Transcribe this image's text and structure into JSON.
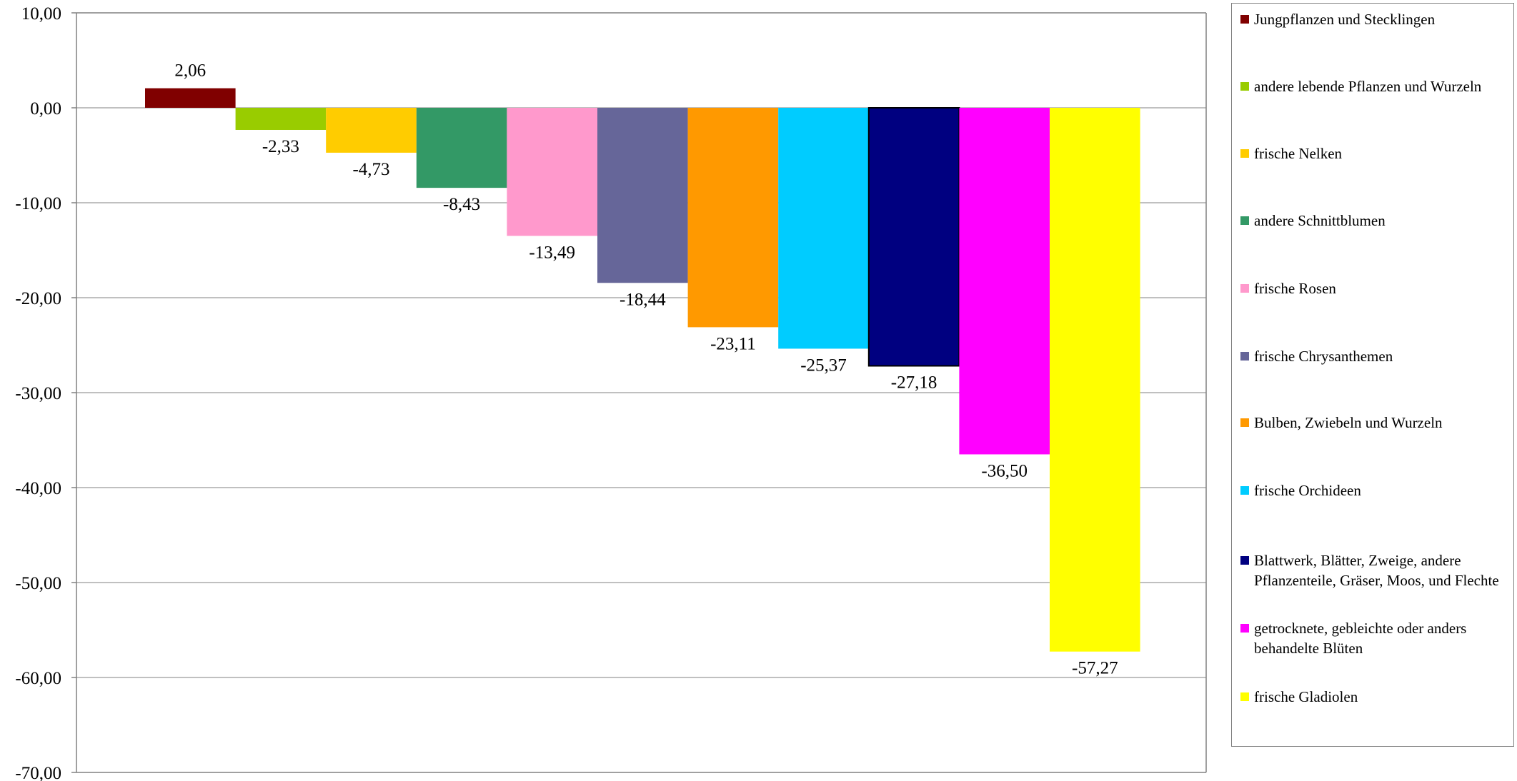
{
  "chart_data": {
    "type": "bar",
    "title": "",
    "xlabel": "",
    "ylabel": "",
    "ylim": [
      -70,
      10
    ],
    "yticks": [
      10,
      0,
      -10,
      -20,
      -30,
      -40,
      -50,
      -60,
      -70
    ],
    "ytick_labels": [
      "10,00",
      "0,00",
      "-10,00",
      "-20,00",
      "-30,00",
      "-40,00",
      "-50,00",
      "-60,00",
      "-70,00"
    ],
    "grid": true,
    "legend_position": "right",
    "categories": [
      "Jungpflanzen und Stecklingen",
      "andere lebende Pflanzen und Wurzeln",
      "frische Nelken",
      "andere Schnittblumen",
      "frische Rosen",
      "frische Chrysanthemen",
      "Bulben, Zwiebeln und Wurzeln",
      "frische Orchideen",
      "Blattwerk, Blätter, Zweige, andere Pflanzenteile, Gräser, Moos, und Flechte",
      "getrocknete, gebleichte oder anders behandelte Blüten",
      "frische Gladiolen"
    ],
    "values": [
      2.06,
      -2.33,
      -4.73,
      -8.43,
      -13.49,
      -18.44,
      -23.11,
      -25.37,
      -27.18,
      -36.5,
      -57.27
    ],
    "value_labels": [
      "2,06",
      "-2,33",
      "-4,73",
      "-8,43",
      "-13,49",
      "-18,44",
      "-23,11",
      "-25,37",
      "-27,18",
      "-36,50",
      "-57,27"
    ],
    "colors": [
      "#800000",
      "#99cc00",
      "#ffcc00",
      "#339966",
      "#ff99cc",
      "#666699",
      "#ff9900",
      "#00ccff",
      "#000080",
      "#ff00ff",
      "#ffff00"
    ]
  }
}
